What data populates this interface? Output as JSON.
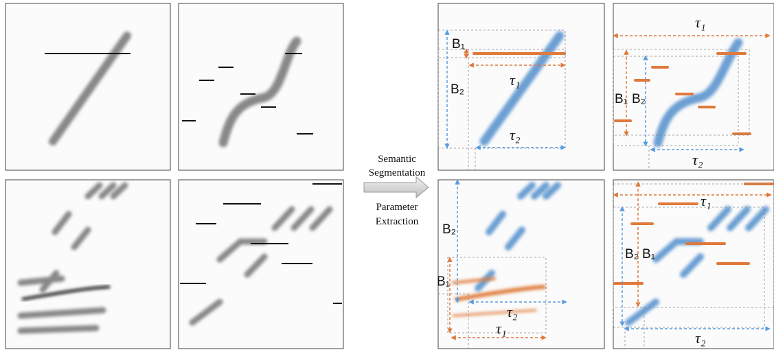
{
  "caption": {
    "above": [
      "Semantic",
      "Segmentation"
    ],
    "below": [
      "Parameter",
      "Extraction"
    ]
  },
  "panels": [
    {
      "labels": [
        "B₁",
        "B₂",
        "τ₁",
        "τ₂"
      ]
    },
    {
      "labels": [
        "τ₁",
        "B₁",
        "B₂",
        "τ₂"
      ]
    },
    {
      "labels": [
        "B₂",
        "B₁",
        "τ₂",
        "τ₁"
      ]
    },
    {
      "labels": [
        "τ₁",
        "B₂",
        "B₁",
        "τ₂"
      ]
    }
  ]
}
